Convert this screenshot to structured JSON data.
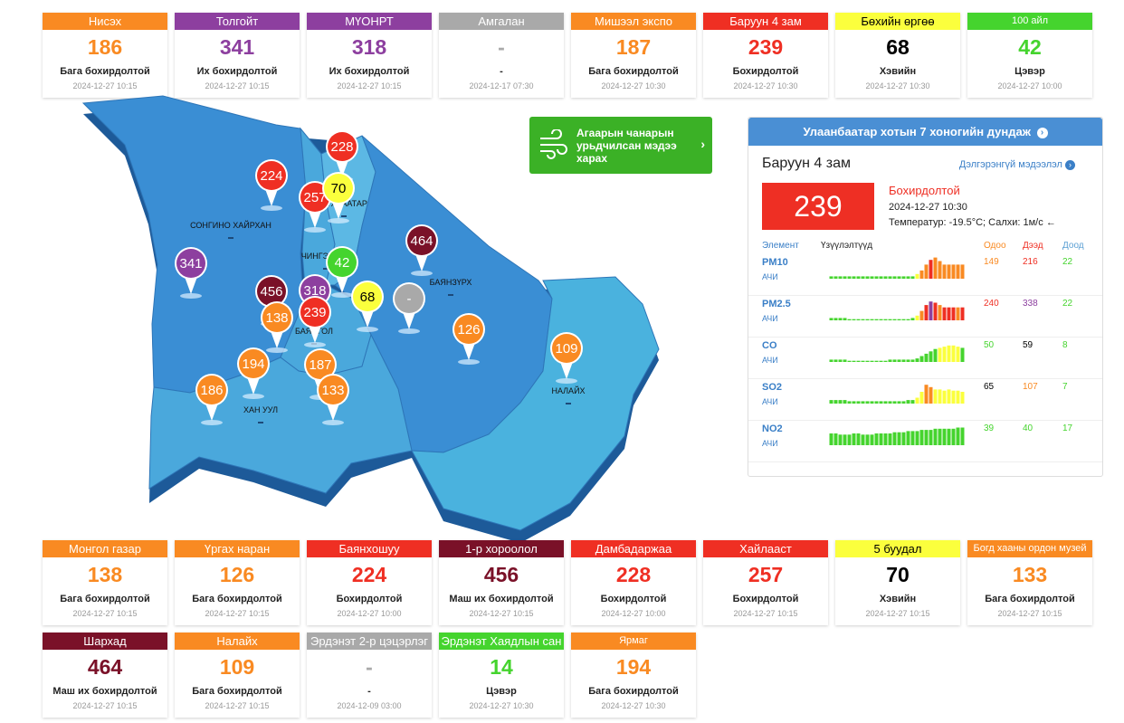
{
  "colors": {
    "good": "#45d42e",
    "moderate": "#fbff3d",
    "usg": "#f98a22",
    "unhealthy": "#ef2f23",
    "very_unhealthy": "#8d3f9f",
    "hazardous": "#7a1128",
    "nodata": "#a9a9a9",
    "accent": "#4a8fd4",
    "forecast": "#3bb126"
  },
  "top_cards": [
    {
      "name": "Нисэх",
      "value": "186",
      "level": "Бага бохирдолтой",
      "time": "2024-12-27 10:15",
      "color": "#f98a22",
      "text": "#f98a22"
    },
    {
      "name": "Толгойт",
      "value": "341",
      "level": "Их бохирдолтой",
      "time": "2024-12-27 10:15",
      "color": "#8d3f9f",
      "text": "#8d3f9f"
    },
    {
      "name": "МҮОНРТ",
      "value": "318",
      "level": "Их бохирдолтой",
      "time": "2024-12-27 10:15",
      "color": "#8d3f9f",
      "text": "#8d3f9f"
    },
    {
      "name": "Амгалан",
      "value": "-",
      "level": "-",
      "time": "2024-12-17 07:30",
      "color": "#a9a9a9",
      "text": "#a9a9a9"
    },
    {
      "name": "Мишээл экспо",
      "value": "187",
      "level": "Бага бохирдолтой",
      "time": "2024-12-27 10:30",
      "color": "#f98a22",
      "text": "#f98a22"
    },
    {
      "name": "Баруун 4 зам",
      "value": "239",
      "level": "Бохирдолтой",
      "time": "2024-12-27 10:30",
      "color": "#ef2f23",
      "text": "#ef2f23"
    },
    {
      "name": "Бөхийн өргөө",
      "value": "68",
      "level": "Хэвийн",
      "time": "2024-12-27 10:30",
      "color": "#fbff3d",
      "text": "#000000",
      "headtext": "#000000"
    },
    {
      "name": "100 айл",
      "value": "42",
      "level": "Цэвэр",
      "time": "2024-12-27 10:00",
      "color": "#45d42e",
      "text": "#45d42e",
      "small": true
    }
  ],
  "bottom_cards": [
    {
      "name": "Монгол газар",
      "value": "138",
      "level": "Бага бохирдолтой",
      "time": "2024-12-27 10:15",
      "color": "#f98a22",
      "text": "#f98a22"
    },
    {
      "name": "Үргах наран",
      "value": "126",
      "level": "Бага бохирдолтой",
      "time": "2024-12-27 10:15",
      "color": "#f98a22",
      "text": "#f98a22"
    },
    {
      "name": "Баянхошуу",
      "value": "224",
      "level": "Бохирдолтой",
      "time": "2024-12-27 10:00",
      "color": "#ef2f23",
      "text": "#ef2f23"
    },
    {
      "name": "1-р хороолол",
      "value": "456",
      "level": "Маш их бохирдолтой",
      "time": "2024-12-27 10:15",
      "color": "#7a1128",
      "text": "#7a1128"
    },
    {
      "name": "Дамбадаржаа",
      "value": "228",
      "level": "Бохирдолтой",
      "time": "2024-12-27 10:00",
      "color": "#ef2f23",
      "text": "#ef2f23"
    },
    {
      "name": "Хайлааст",
      "value": "257",
      "level": "Бохирдолтой",
      "time": "2024-12-27 10:15",
      "color": "#ef2f23",
      "text": "#ef2f23"
    },
    {
      "name": "5 буудал",
      "value": "70",
      "level": "Хэвийн",
      "time": "2024-12-27 10:15",
      "color": "#fbff3d",
      "text": "#000000",
      "headtext": "#000000"
    },
    {
      "name": "Богд хааны ордон музей",
      "value": "133",
      "level": "Бага бохирдолтой",
      "time": "2024-12-27 10:15",
      "color": "#f98a22",
      "text": "#f98a22",
      "small": true
    },
    {
      "name": "Шархад",
      "value": "464",
      "level": "Маш их бохирдолтой",
      "time": "2024-12-27 10:15",
      "color": "#7a1128",
      "text": "#7a1128"
    },
    {
      "name": "Налайх",
      "value": "109",
      "level": "Бага бохирдолтой",
      "time": "2024-12-27 10:15",
      "color": "#f98a22",
      "text": "#f98a22"
    },
    {
      "name": "Эрдэнэт 2-р цэцэрлэг",
      "value": "-",
      "level": "-",
      "time": "2024-12-09 03:00",
      "color": "#a9a9a9",
      "text": "#a9a9a9"
    },
    {
      "name": "Эрдэнэт Хаядлын сан",
      "value": "14",
      "level": "Цэвэр",
      "time": "2024-12-27 10:30",
      "color": "#45d42e",
      "text": "#45d42e"
    },
    {
      "name": "Ярмаг",
      "value": "194",
      "level": "Бага бохирдолтой",
      "time": "2024-12-27 10:30",
      "color": "#f98a22",
      "text": "#f98a22",
      "small": true
    }
  ],
  "map": {
    "district_labels": [
      "СОНГИНО ХАЙРХАН",
      "ЧИНГЭЛТЭЙ",
      "СҮХБААТАР",
      "БАЯНЗҮРХ",
      "БАЯНГОЛ",
      "ХАН УУЛ",
      "НАЛАЙХ"
    ],
    "pins": [
      {
        "value": "228",
        "color": "#ef2f23"
      },
      {
        "value": "224",
        "color": "#ef2f23"
      },
      {
        "value": "257",
        "color": "#ef2f23"
      },
      {
        "value": "70",
        "color": "#fbff3d",
        "textcolor": "#000000"
      },
      {
        "value": "464",
        "color": "#7a1128"
      },
      {
        "value": "42",
        "color": "#45d42e"
      },
      {
        "value": "341",
        "color": "#8d3f9f"
      },
      {
        "value": "456",
        "color": "#7a1128"
      },
      {
        "value": "318",
        "color": "#8d3f9f"
      },
      {
        "value": "68",
        "color": "#fbff3d",
        "textcolor": "#000000"
      },
      {
        "value": "-",
        "color": "#a9a9a9"
      },
      {
        "value": "138",
        "color": "#f98a22"
      },
      {
        "value": "239",
        "color": "#ef2f23"
      },
      {
        "value": "126",
        "color": "#f98a22"
      },
      {
        "value": "109",
        "color": "#f98a22"
      },
      {
        "value": "194",
        "color": "#f98a22"
      },
      {
        "value": "187",
        "color": "#f98a22"
      },
      {
        "value": "186",
        "color": "#f98a22"
      },
      {
        "value": "133",
        "color": "#f98a22"
      }
    ]
  },
  "forecast": {
    "text": "Агаарын чанарын урьдчилсан мэдээ харах",
    "icon": "wind-icon"
  },
  "panel": {
    "title": "Улаанбаатар хотын 7 хоногийн дундаж",
    "station": "Баруун 4 зам",
    "more_link": "Дэлгэрэнгүй мэдээлэл",
    "aqi": "239",
    "status": "Бохирдолтой",
    "time": "2024-12-27 10:30",
    "weather": "Температур: -19.5°C; Салхи: 1м/с",
    "col_element": "Элемент",
    "col_values": "Үзүүлэлтүүд",
    "col_now": "Одоо",
    "col_max": "Дээд",
    "col_min": "Доод",
    "pollutants": [
      {
        "name": "PM10",
        "unit": "АЧИ",
        "now": "149",
        "max": "216",
        "min": "22",
        "now_color": "#f98a22",
        "max_color": "#ef2f23",
        "min_color": "#45d42e",
        "bars": [
          2,
          2,
          2,
          2,
          2,
          2,
          2,
          2,
          2,
          2,
          2,
          2,
          2,
          2,
          2,
          2,
          2,
          2,
          2,
          4,
          7,
          12,
          16,
          18,
          15,
          12,
          12,
          12,
          12,
          12
        ],
        "barcolors": [
          "g",
          "g",
          "g",
          "g",
          "g",
          "g",
          "g",
          "g",
          "g",
          "g",
          "g",
          "g",
          "g",
          "g",
          "g",
          "g",
          "g",
          "g",
          "g",
          "y",
          "o",
          "o",
          "r",
          "o",
          "o",
          "o",
          "o",
          "o",
          "o",
          "o"
        ]
      },
      {
        "name": "PM2.5",
        "unit": "АЧИ",
        "now": "240",
        "max": "338",
        "min": "22",
        "now_color": "#ef2f23",
        "max_color": "#8d3f9f",
        "min_color": "#45d42e",
        "bars": [
          2,
          2,
          2,
          2,
          1,
          1,
          1,
          1,
          1,
          1,
          1,
          1,
          1,
          1,
          1,
          1,
          1,
          1,
          2,
          4,
          8,
          13,
          16,
          15,
          13,
          11,
          11,
          11,
          11,
          11
        ],
        "barcolors": [
          "g",
          "g",
          "g",
          "g",
          "g",
          "g",
          "g",
          "g",
          "g",
          "g",
          "g",
          "g",
          "g",
          "g",
          "g",
          "g",
          "g",
          "g",
          "g",
          "y",
          "o",
          "r",
          "p",
          "r",
          "o",
          "r",
          "r",
          "r",
          "o",
          "r"
        ]
      },
      {
        "name": "CO",
        "unit": "АЧИ",
        "now": "50",
        "max": "59",
        "min": "8",
        "now_color": "#45d42e",
        "max_color": "#000000",
        "min_color": "#45d42e",
        "bars": [
          2,
          2,
          2,
          2,
          1,
          1,
          1,
          1,
          1,
          1,
          1,
          1,
          1,
          2,
          2,
          2,
          2,
          2,
          2,
          3,
          5,
          7,
          9,
          11,
          12,
          13,
          14,
          14,
          13,
          12
        ],
        "barcolors": [
          "g",
          "g",
          "g",
          "g",
          "g",
          "g",
          "g",
          "g",
          "g",
          "g",
          "g",
          "g",
          "g",
          "g",
          "g",
          "g",
          "g",
          "g",
          "g",
          "g",
          "g",
          "g",
          "g",
          "g",
          "y",
          "y",
          "y",
          "y",
          "y",
          "g"
        ]
      },
      {
        "name": "SO2",
        "unit": "АЧИ",
        "now": "65",
        "max": "107",
        "min": "7",
        "now_color": "#000000",
        "max_color": "#f98a22",
        "min_color": "#45d42e",
        "bars": [
          3,
          3,
          3,
          3,
          2,
          2,
          2,
          2,
          2,
          2,
          2,
          2,
          2,
          2,
          2,
          2,
          2,
          3,
          3,
          5,
          10,
          16,
          14,
          12,
          12,
          11,
          12,
          11,
          11,
          10
        ],
        "barcolors": [
          "g",
          "g",
          "g",
          "g",
          "g",
          "g",
          "g",
          "g",
          "g",
          "g",
          "g",
          "g",
          "g",
          "g",
          "g",
          "g",
          "g",
          "g",
          "g",
          "y",
          "y",
          "o",
          "o",
          "y",
          "y",
          "y",
          "y",
          "y",
          "y",
          "y"
        ]
      },
      {
        "name": "NO2",
        "unit": "АЧИ",
        "now": "39",
        "max": "40",
        "min": "17",
        "now_color": "#45d42e",
        "max_color": "#45d42e",
        "min_color": "#45d42e",
        "bars": [
          10,
          10,
          9,
          9,
          9,
          10,
          10,
          9,
          9,
          9,
          10,
          10,
          10,
          10,
          11,
          11,
          11,
          12,
          12,
          12,
          13,
          13,
          13,
          14,
          14,
          14,
          14,
          14,
          15,
          15
        ],
        "barcolors": [
          "g",
          "g",
          "g",
          "g",
          "g",
          "g",
          "g",
          "g",
          "g",
          "g",
          "g",
          "g",
          "g",
          "g",
          "g",
          "g",
          "g",
          "g",
          "g",
          "g",
          "g",
          "g",
          "g",
          "g",
          "g",
          "g",
          "g",
          "g",
          "g",
          "g"
        ]
      }
    ]
  }
}
